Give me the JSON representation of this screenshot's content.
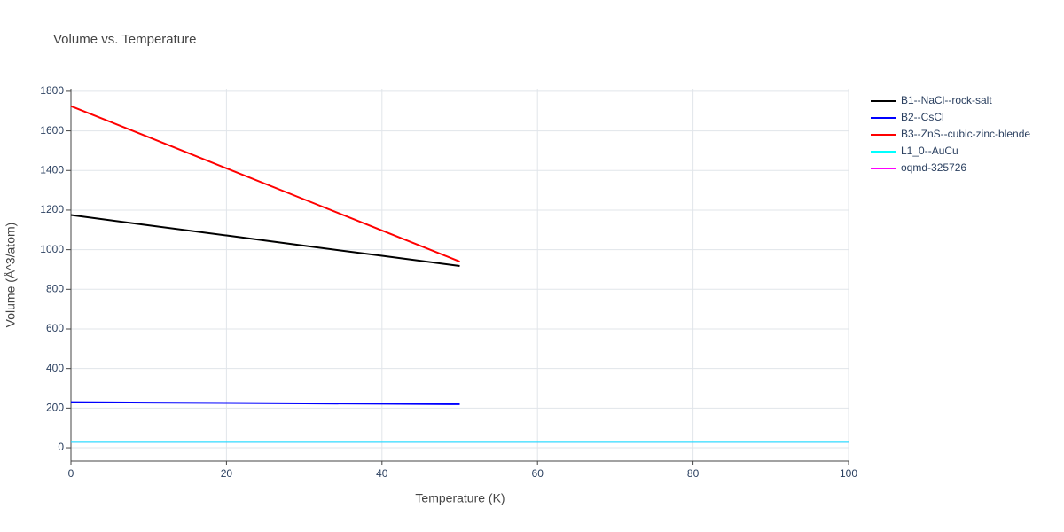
{
  "chart_data": {
    "type": "line",
    "title": "Volume vs. Temperature",
    "x_label": "Temperature (K)",
    "y_label": "Volume (Å^3/atom)",
    "x": [
      0,
      10,
      20,
      30,
      40,
      50,
      60,
      70,
      80,
      90,
      100
    ],
    "series": [
      {
        "name": "B1--NaCl--rock-salt",
        "color": "#000000",
        "values": [
          1175,
          1123,
          1072,
          1020,
          969,
          918,
          null,
          null,
          null,
          null,
          null
        ]
      },
      {
        "name": "B2--CsCl",
        "color": "#0000ff",
        "values": [
          230,
          228,
          226,
          224,
          222,
          220,
          null,
          null,
          null,
          null,
          null
        ]
      },
      {
        "name": "B3--ZnS--cubic-zinc-blende",
        "color": "#ff0000",
        "values": [
          1725,
          1568,
          1411,
          1254,
          1097,
          940,
          null,
          null,
          null,
          null,
          null
        ]
      },
      {
        "name": "L1_0--AuCu",
        "color": "#00ffff",
        "values": [
          30,
          30,
          30,
          30,
          30,
          30,
          30,
          30,
          30,
          30,
          30
        ]
      },
      {
        "name": "oqmd-325726",
        "color": "#ff00ff",
        "values": [
          30,
          30,
          30,
          30,
          30,
          30,
          30,
          30,
          30,
          30,
          30
        ]
      }
    ],
    "xlim": [
      0,
      100
    ],
    "xticks": [
      0,
      20,
      40,
      60,
      80,
      100
    ],
    "ylim": [
      -67,
      1813
    ],
    "yticks": [
      0,
      200,
      400,
      600,
      800,
      1000,
      1200,
      1400,
      1600,
      1800
    ],
    "grid": true,
    "legend": "right"
  }
}
